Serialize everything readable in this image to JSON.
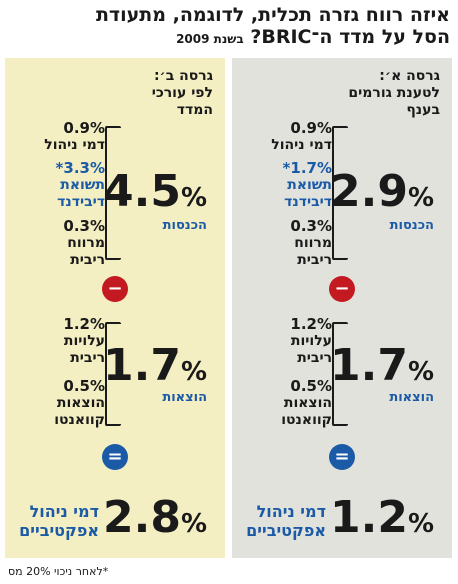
{
  "title": {
    "line1": "איזה רווח גזרה תכלית, לדוגמה, מתעודת",
    "line2": "הסל על מדד ה־BRIC?",
    "subtitle": "בשנת 2009"
  },
  "panel_a": {
    "header": [
      "גרסה א׳:",
      "לטענת גורמים",
      "בענף"
    ],
    "items": [
      {
        "value": "0.9%",
        "label": "דמי ניהול",
        "blue": false
      },
      {
        "value": "1.7%*",
        "label": "תשואת דיבידנד",
        "blue": true
      },
      {
        "value": "0.3%",
        "label": "מרווח ריבית",
        "blue": false
      }
    ],
    "income_value": "2.9",
    "income_label": "הכנסות",
    "expense_items": [
      {
        "value": "1.2%",
        "label": "עלויות ריבית"
      },
      {
        "value": "0.5%",
        "label": "הוצאות קוואנטו"
      }
    ],
    "expense_value": "1.7",
    "expense_label": "הוצאות",
    "result_value": "1.2",
    "result_label": "דמי ניהול אפקטיביים"
  },
  "panel_b": {
    "header": [
      "גרסה ב׳:",
      "לפי עורכי",
      "המדד"
    ],
    "items": [
      {
        "value": "0.9%",
        "label": "דמי ניהול",
        "blue": false
      },
      {
        "value": "3.3%*",
        "label": "תשואת דיבידנד",
        "blue": true
      },
      {
        "value": "0.3%",
        "label": "מרווח ריבית",
        "blue": false
      }
    ],
    "income_value": "4.5",
    "income_label": "הכנסות",
    "expense_items": [
      {
        "value": "1.2%",
        "label": "עלויות ריבית"
      },
      {
        "value": "0.5%",
        "label": "הוצאות קוואנטו"
      }
    ],
    "expense_value": "1.7",
    "expense_label": "הוצאות",
    "result_value": "2.8",
    "result_label": "דמי ניהול אפקטיביים"
  },
  "symbols": {
    "minus": "−",
    "equals": "=",
    "percent": "%"
  },
  "footnote": "*לאחר ניכוי 20% מס"
}
